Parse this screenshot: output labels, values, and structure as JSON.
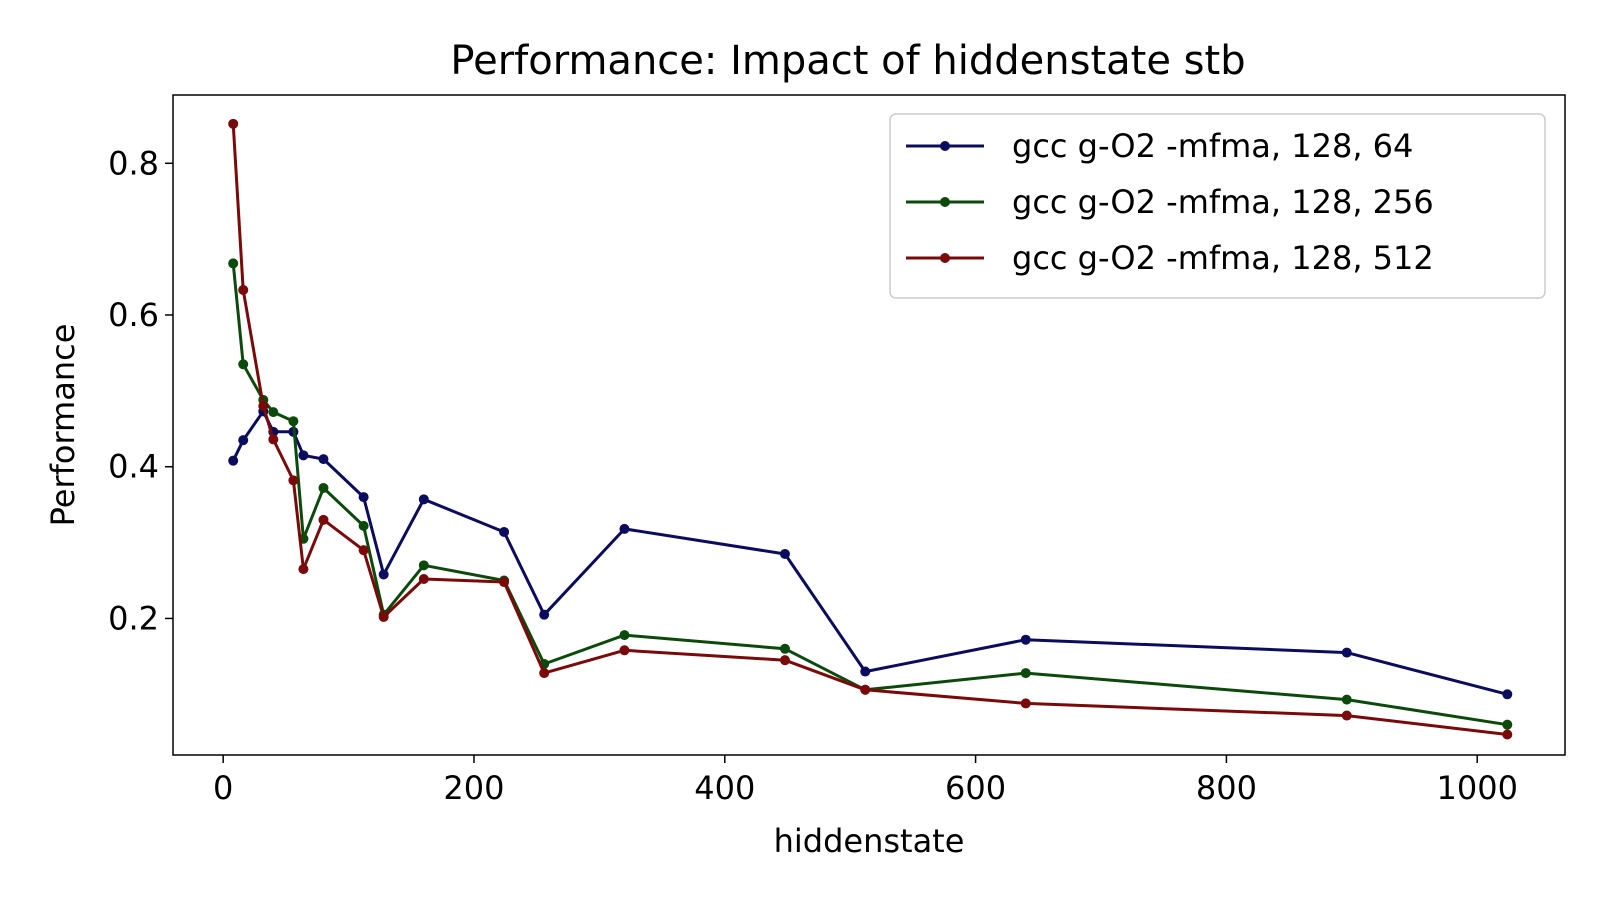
{
  "chart_data": {
    "type": "line",
    "title": "Performance: Impact of hiddenstate stb",
    "xlabel": "hiddenstate",
    "ylabel": "Performance",
    "xlim": [
      -40,
      1070
    ],
    "ylim": [
      0.02,
      0.89
    ],
    "xticks": [
      0,
      200,
      400,
      600,
      800,
      1000
    ],
    "yticks": [
      0.2,
      0.4,
      0.6,
      0.8
    ],
    "legend": "top-right",
    "grid": false,
    "x": [
      8,
      16,
      32,
      40,
      56,
      64,
      80,
      112,
      128,
      160,
      224,
      256,
      320,
      448,
      512,
      640,
      896,
      1024
    ],
    "series": [
      {
        "name": "gcc g-O2 -mfma, 128, 64",
        "color": "#0c0c5e",
        "values": [
          0.408,
          0.435,
          0.473,
          0.446,
          0.446,
          0.415,
          0.41,
          0.36,
          0.258,
          0.357,
          0.314,
          0.205,
          0.318,
          0.285,
          0.13,
          0.172,
          0.155,
          0.1
        ]
      },
      {
        "name": "gcc g-O2 -mfma, 128, 256",
        "color": "#0c4a0c",
        "values": [
          0.668,
          0.535,
          0.488,
          0.472,
          0.46,
          0.305,
          0.372,
          0.322,
          0.205,
          0.27,
          0.25,
          0.14,
          0.178,
          0.16,
          0.106,
          0.128,
          0.093,
          0.06
        ]
      },
      {
        "name": "gcc g-O2 -mfma, 128, 512",
        "color": "#7a0a0a",
        "values": [
          0.852,
          0.633,
          0.48,
          0.436,
          0.382,
          0.265,
          0.33,
          0.29,
          0.202,
          0.252,
          0.248,
          0.128,
          0.158,
          0.145,
          0.106,
          0.088,
          0.072,
          0.047
        ]
      }
    ]
  }
}
